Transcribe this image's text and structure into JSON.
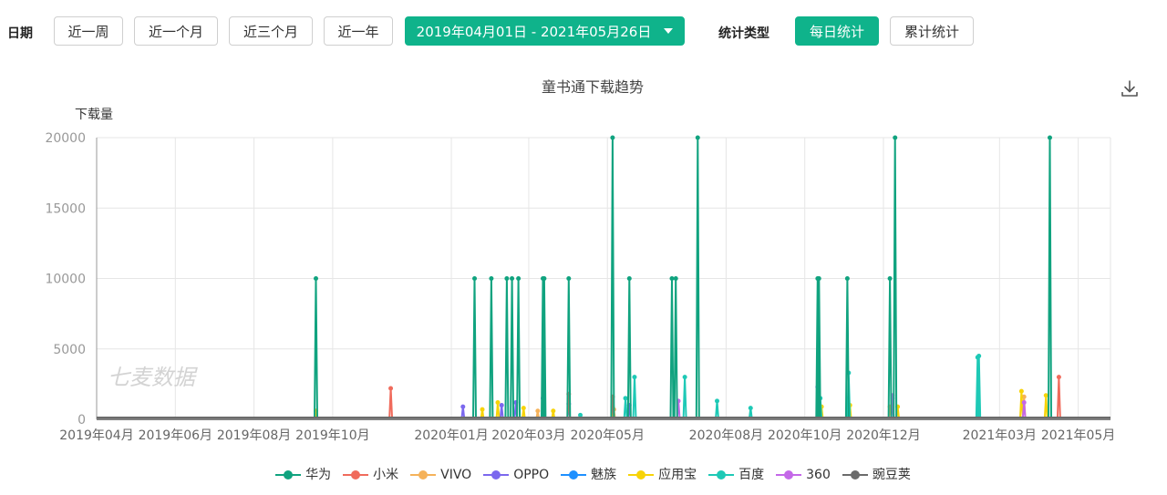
{
  "filters": {
    "date_label": "日期",
    "quick_ranges": [
      "近一周",
      "近一个月",
      "近三个月",
      "近一年"
    ],
    "date_range": "2019年04月01日 - 2021年05月26日",
    "stat_type_label": "统计类型",
    "stat_types": [
      {
        "label": "每日统计",
        "active": true
      },
      {
        "label": "累计统计",
        "active": false
      }
    ]
  },
  "download_icon": "download-icon",
  "watermark": "七麦数据",
  "chart_data": {
    "type": "line",
    "title": "童书通下载趋势",
    "ylabel": "下载量",
    "xlabel": "",
    "ylim": [
      0,
      20000
    ],
    "yticks": [
      0,
      5000,
      10000,
      15000,
      20000
    ],
    "xlim": [
      "2019-04-01",
      "2021-05-26"
    ],
    "xticks": [
      "2019年04月",
      "2019年06月",
      "2019年08月",
      "2019年10月",
      "2020年01月",
      "2020年03月",
      "2020年05月",
      "2020年08月",
      "2020年10月",
      "2020年12月",
      "2021年03月",
      "2021年05月"
    ],
    "xtick_dates": [
      "2019-04-01",
      "2019-06-01",
      "2019-08-01",
      "2019-10-01",
      "2020-01-01",
      "2020-03-01",
      "2020-05-01",
      "2020-08-01",
      "2020-10-01",
      "2020-12-01",
      "2021-03-01",
      "2021-05-01"
    ],
    "grid": true,
    "legend_position": "bottom",
    "series": [
      {
        "name": "华为",
        "color": "#10a37f",
        "points": [
          [
            "2019-09-18",
            10000
          ],
          [
            "2020-01-19",
            10000
          ],
          [
            "2020-02-01",
            10000
          ],
          [
            "2020-02-13",
            10000
          ],
          [
            "2020-02-17",
            10000
          ],
          [
            "2020-02-22",
            10000
          ],
          [
            "2020-03-12",
            10000
          ],
          [
            "2020-03-13",
            10000
          ],
          [
            "2020-04-01",
            10000
          ],
          [
            "2020-05-05",
            20000
          ],
          [
            "2020-05-18",
            10000
          ],
          [
            "2020-06-20",
            10000
          ],
          [
            "2020-06-23",
            10000
          ],
          [
            "2020-07-10",
            20000
          ],
          [
            "2020-10-11",
            10000
          ],
          [
            "2020-10-12",
            10000
          ],
          [
            "2020-11-03",
            10000
          ],
          [
            "2020-12-06",
            10000
          ],
          [
            "2020-12-10",
            20000
          ],
          [
            "2021-04-09",
            20000
          ]
        ]
      },
      {
        "name": "小米",
        "color": "#f06b5c",
        "points": [
          [
            "2019-11-15",
            2200
          ],
          [
            "2020-04-01",
            1800
          ],
          [
            "2020-05-05",
            1600
          ],
          [
            "2021-04-16",
            3000
          ]
        ]
      },
      {
        "name": "VIVO",
        "color": "#f5b25a",
        "points": [
          [
            "2020-03-08",
            600
          ],
          [
            "2020-05-06",
            700
          ],
          [
            "2020-12-06",
            900
          ],
          [
            "2021-03-20",
            1600
          ]
        ]
      },
      {
        "name": "OPPO",
        "color": "#7b68ee",
        "points": [
          [
            "2020-01-10",
            900
          ],
          [
            "2020-02-09",
            1000
          ],
          [
            "2020-02-20",
            1200
          ],
          [
            "2020-03-12",
            1500
          ],
          [
            "2020-04-01",
            1100
          ],
          [
            "2020-05-18",
            1000
          ],
          [
            "2020-10-11",
            2300
          ],
          [
            "2020-12-08",
            1500
          ]
        ]
      },
      {
        "name": "魅族",
        "color": "#1e90ff",
        "points": []
      },
      {
        "name": "应用宝",
        "color": "#f7d308",
        "points": [
          [
            "2019-09-18",
            600
          ],
          [
            "2020-01-25",
            700
          ],
          [
            "2020-02-06",
            1200
          ],
          [
            "2020-02-26",
            800
          ],
          [
            "2020-03-20",
            600
          ],
          [
            "2020-05-05",
            900
          ],
          [
            "2020-10-14",
            900
          ],
          [
            "2020-11-05",
            1000
          ],
          [
            "2020-12-12",
            900
          ],
          [
            "2021-03-18",
            2000
          ],
          [
            "2021-04-06",
            1700
          ]
        ]
      },
      {
        "name": "百度",
        "color": "#1ec9b6",
        "points": [
          [
            "2020-04-10",
            300
          ],
          [
            "2020-05-15",
            1500
          ],
          [
            "2020-05-22",
            3000
          ],
          [
            "2020-06-30",
            3000
          ],
          [
            "2020-07-25",
            1300
          ],
          [
            "2020-08-20",
            800
          ],
          [
            "2020-10-13",
            1500
          ],
          [
            "2020-11-04",
            3300
          ],
          [
            "2021-02-12",
            4400
          ],
          [
            "2021-02-13",
            4500
          ]
        ]
      },
      {
        "name": "360",
        "color": "#c468e8",
        "points": [
          [
            "2020-06-25",
            1300
          ],
          [
            "2020-12-08",
            1700
          ],
          [
            "2021-03-20",
            1200
          ]
        ]
      },
      {
        "name": "豌豆荚",
        "color": "#6b6b6b",
        "points": [
          [
            "2019-04-01",
            0
          ],
          [
            "2021-05-26",
            0
          ]
        ]
      }
    ]
  }
}
